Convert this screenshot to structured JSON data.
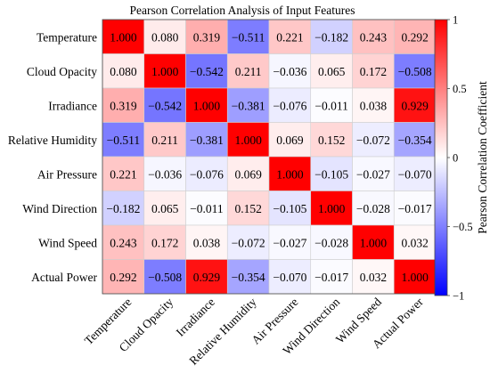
{
  "chart_data": {
    "type": "heatmap",
    "title": "Pearson Correlation Analysis of Input Features",
    "xlabel": "",
    "ylabel": "",
    "row_labels": [
      "Temperature",
      "Cloud Opacity",
      "Irradiance",
      "Relative Humidity",
      "Air Pressure",
      "Wind Direction",
      "Wind Speed",
      "Actual Power"
    ],
    "col_labels": [
      "Temperature",
      "Cloud Opacity",
      "Irradiance",
      "Relative Humidity",
      "Air Pressure",
      "Wind Direction",
      "Wind Speed",
      "Actual Power"
    ],
    "cell_labels": [
      [
        "1.000",
        "0.080",
        "0.319",
        "−0.511",
        "0.221",
        "−0.182",
        "0.243",
        "0.292"
      ],
      [
        "0.080",
        "1.000",
        "−0.542",
        "0.211",
        "−0.036",
        "0.065",
        "0.172",
        "−0.508"
      ],
      [
        "0.319",
        "−0.542",
        "1.000",
        "−0.381",
        "−0.076",
        "−0.011",
        "0.038",
        "0.929"
      ],
      [
        "−0.511",
        "0.211",
        "−0.381",
        "1.000",
        "0.069",
        "0.152",
        "−0.072",
        "−0.354"
      ],
      [
        "0.221",
        "−0.036",
        "−0.076",
        "0.069",
        "1.000",
        "−0.105",
        "−0.027",
        "−0.070"
      ],
      [
        "−0.182",
        "0.065",
        "−0.011",
        "0.152",
        "−0.105",
        "1.000",
        "−0.028",
        "−0.017"
      ],
      [
        "0.243",
        "0.172",
        "0.038",
        "−0.072",
        "−0.027",
        "−0.028",
        "1.000",
        "0.032"
      ],
      [
        "0.292",
        "−0.508",
        "0.929",
        "−0.354",
        "−0.070",
        "−0.017",
        "0.032",
        "1.000"
      ]
    ],
    "colorbar": {
      "label": "Pearson Correlation Coefficient",
      "range": [
        -1,
        1
      ],
      "tick_values": [
        1,
        0.5,
        0,
        -0.5,
        -1
      ],
      "tick_labels": [
        "1",
        "0.5",
        "0",
        "−0.5",
        "−1"
      ],
      "colors": {
        "low": "#0000ff",
        "mid": "#ffffff",
        "high": "#ff0000"
      }
    },
    "grid": true
  }
}
